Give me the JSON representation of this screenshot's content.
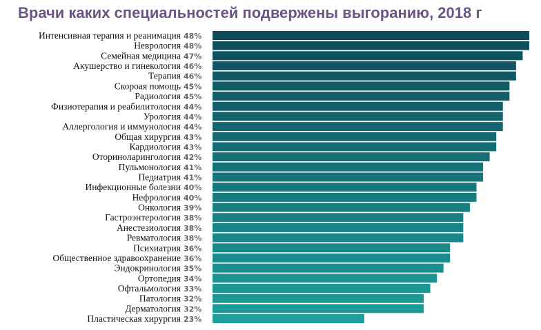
{
  "chart_data": {
    "type": "bar",
    "orientation": "horizontal",
    "title": "Врачи каких специальностей подвержены выгоранию, 2018 г",
    "value_suffix": "%",
    "categories": [
      "Интенсивная терапия и реанимация",
      "Неврология",
      "Семейная медицина",
      "Акушерство и гинекология",
      "Терапия",
      "Скороая помощь",
      "Радиология",
      "Физиотерапия и реабилитология",
      "Урология",
      "Аллергология и иммунология",
      "Общая хирургия",
      "Кардиология",
      "Оториноларингология",
      "Пульмонология",
      "Педиатрия",
      "Инфекционные болезни",
      "Нефрология",
      "Онкология",
      "Гастроэнтерология",
      "Анестезиология",
      "Ревматология",
      "Психиатрия",
      "Общественное здравоохранение",
      "Эндокринология",
      "Ортопедия",
      "Офтальмология",
      "Патология",
      "Дерматология",
      "Пластическая хирургия"
    ],
    "values": [
      48,
      48,
      47,
      46,
      46,
      45,
      45,
      44,
      44,
      44,
      43,
      43,
      42,
      41,
      41,
      40,
      40,
      39,
      38,
      38,
      38,
      36,
      36,
      35,
      34,
      33,
      32,
      32,
      23
    ],
    "xlim": [
      0,
      48
    ],
    "grid": false,
    "legend": "none",
    "colors": {
      "top": "#0e4c5a",
      "bottom": "#1e9e9a",
      "title": "#6b5585"
    }
  }
}
